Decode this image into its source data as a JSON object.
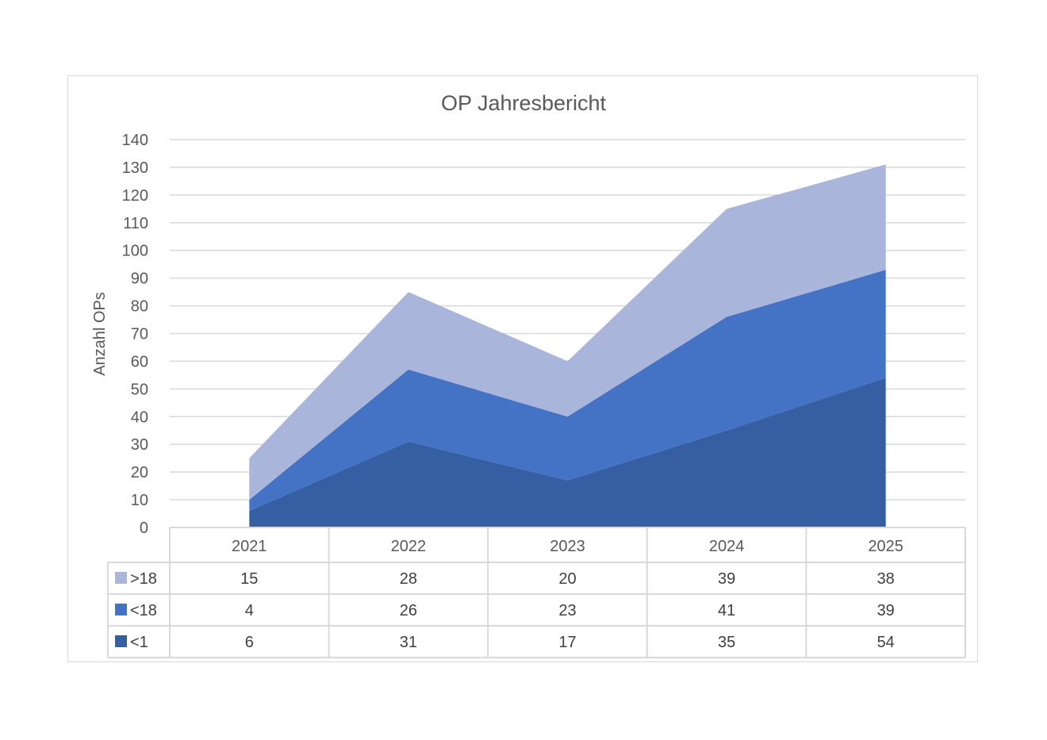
{
  "chart_data": {
    "type": "area",
    "stacked": true,
    "title": "OP Jahresbericht",
    "xlabel": "",
    "ylabel": "Anzahl OPs",
    "categories": [
      "2021",
      "2022",
      "2023",
      "2024",
      "2025"
    ],
    "series": [
      {
        "name": ">18",
        "values": [
          15,
          28,
          20,
          39,
          38
        ],
        "color": "#A9B5DB"
      },
      {
        "name": "<18",
        "values": [
          4,
          26,
          23,
          41,
          39
        ],
        "color": "#4472C4"
      },
      {
        "name": "<1",
        "values": [
          6,
          31,
          17,
          35,
          54
        ],
        "color": "#365FA3"
      }
    ],
    "ylim": [
      0,
      140
    ],
    "yticks": [
      0,
      10,
      20,
      30,
      40,
      50,
      60,
      70,
      80,
      90,
      100,
      110,
      120,
      130,
      140
    ],
    "grid": true,
    "legend_position": "data-table",
    "data_table": true
  }
}
